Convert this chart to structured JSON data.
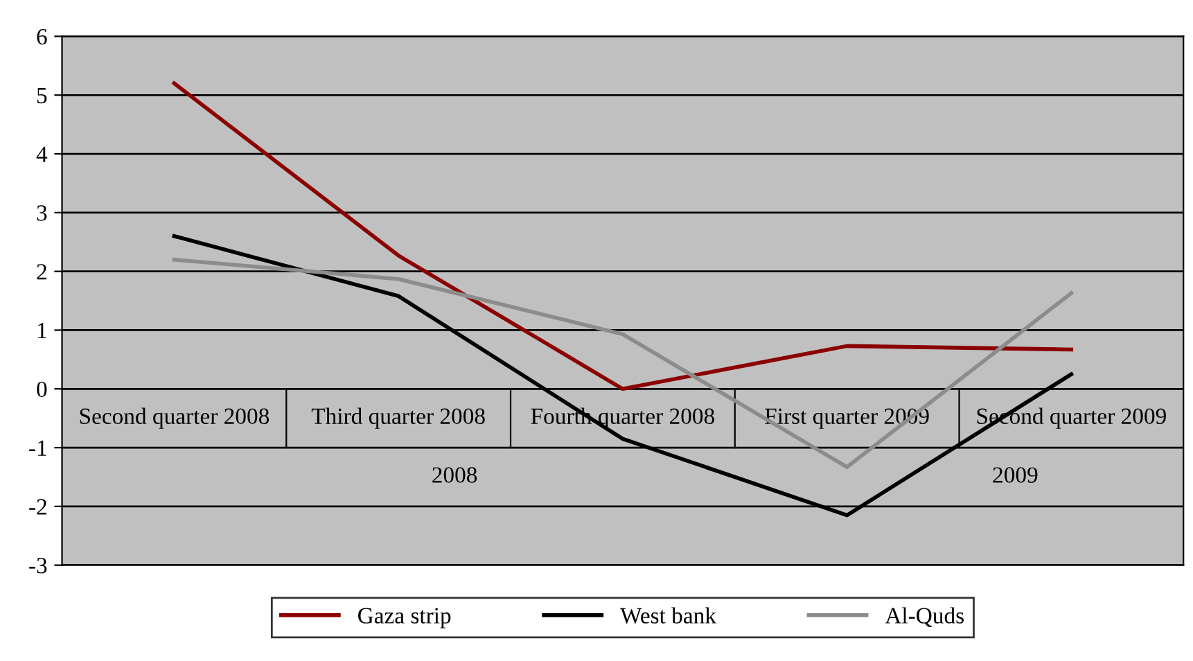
{
  "chart_data": {
    "type": "line",
    "categories": [
      "Second quarter 2008",
      "Third quarter 2008",
      "Fourth quarter 2008",
      "First quarter 2009",
      "Second quarter 2009"
    ],
    "series": [
      {
        "name": "Gaza strip",
        "color": "#8b0000",
        "values": [
          5.2,
          2.27,
          0.0,
          0.73,
          0.67
        ]
      },
      {
        "name": "West bank",
        "color": "#000000",
        "values": [
          2.6,
          1.58,
          -0.85,
          -2.15,
          0.25
        ]
      },
      {
        "name": "Al-Quds",
        "color": "#8c8c8c",
        "values": [
          2.2,
          1.87,
          0.93,
          -1.33,
          1.63
        ]
      }
    ],
    "annotations": [
      "2008",
      "2009"
    ],
    "ylim": [
      -3,
      6
    ],
    "yticks": [
      -3,
      -2,
      -1,
      0,
      1,
      2,
      3,
      4,
      5,
      6
    ],
    "grid": "y",
    "legend": "bottom",
    "marker": "none",
    "line_style": "solid"
  }
}
